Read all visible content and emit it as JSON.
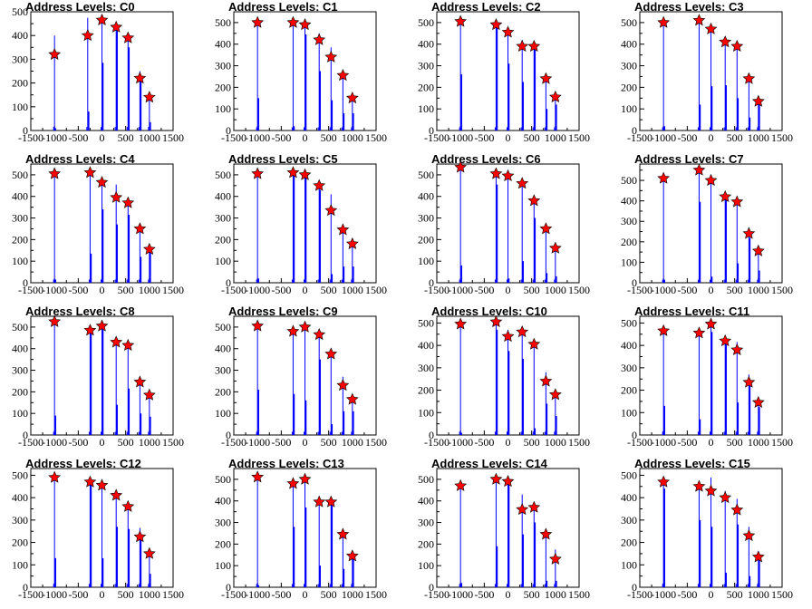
{
  "colors": {
    "line": "#0000ff",
    "marker": "#ff0000",
    "axis": "#000000"
  },
  "panels": [
    {
      "title": "Address Levels: C0",
      "ylim": [
        0,
        500
      ],
      "yticks": [
        "0",
        "100",
        "200",
        "300",
        "400",
        "500"
      ],
      "xlim": [
        -1500,
        1500
      ],
      "xticks": [
        "-1500",
        "-1000",
        "-500",
        "0",
        "500",
        "1000",
        "1500"
      ]
    },
    {
      "title": "Address Levels: C1",
      "ylim": [
        0,
        550
      ],
      "yticks": [
        "0",
        "100",
        "200",
        "300",
        "400",
        "500"
      ],
      "xlim": [
        -1500,
        1500
      ],
      "xticks": [
        "-1500",
        "-1000",
        "-500",
        "0",
        "500",
        "1000",
        "1500"
      ]
    },
    {
      "title": "Address Levels: C2",
      "ylim": [
        0,
        550
      ],
      "yticks": [
        "0",
        "100",
        "200",
        "300",
        "400",
        "500"
      ],
      "xlim": [
        -1500,
        1500
      ],
      "xticks": [
        "-1500",
        "-1000",
        "-500",
        "0",
        "500",
        "1000",
        "1500"
      ]
    },
    {
      "title": "Address Levels: C3",
      "ylim": [
        0,
        550
      ],
      "yticks": [
        "0",
        "100",
        "200",
        "300",
        "400",
        "500"
      ],
      "xlim": [
        -1500,
        1500
      ],
      "xticks": [
        "-1500",
        "-1000",
        "-500",
        "0",
        "500",
        "1000",
        "1500"
      ]
    },
    {
      "title": "Address Levels: C4",
      "ylim": [
        0,
        550
      ],
      "yticks": [
        "0",
        "100",
        "200",
        "300",
        "400",
        "500"
      ],
      "xlim": [
        -1500,
        1500
      ],
      "xticks": [
        "-1500",
        "-1000",
        "-500",
        "0",
        "500",
        "1000",
        "1500"
      ]
    },
    {
      "title": "Address Levels: C5",
      "ylim": [
        0,
        550
      ],
      "yticks": [
        "0",
        "100",
        "200",
        "300",
        "400",
        "500"
      ],
      "xlim": [
        -1500,
        1500
      ],
      "xticks": [
        "-1500",
        "-1000",
        "-500",
        "0",
        "500",
        "1000",
        "1500"
      ]
    },
    {
      "title": "Address Levels: C6",
      "ylim": [
        0,
        550
      ],
      "yticks": [
        "0",
        "100",
        "200",
        "300",
        "400",
        "500"
      ],
      "xlim": [
        -1500,
        1500
      ],
      "xticks": [
        "-1500",
        "-1000",
        "-500",
        "0",
        "500",
        "1000",
        "1500"
      ]
    },
    {
      "title": "Address Levels: C7",
      "ylim": [
        0,
        580
      ],
      "yticks": [
        "0",
        "100",
        "200",
        "300",
        "400",
        "500"
      ],
      "xlim": [
        -1500,
        1500
      ],
      "xticks": [
        "-1500",
        "-1000",
        "-500",
        "0",
        "500",
        "1000",
        "1500"
      ]
    },
    {
      "title": "Address Levels: C8",
      "ylim": [
        0,
        550
      ],
      "yticks": [
        "0",
        "100",
        "200",
        "300",
        "400",
        "500"
      ],
      "xlim": [
        -1500,
        1500
      ],
      "xticks": [
        "-1500",
        "-1000",
        "-500",
        "0",
        "500",
        "1000",
        "1500"
      ]
    },
    {
      "title": "Address Levels: C9",
      "ylim": [
        0,
        550
      ],
      "yticks": [
        "0",
        "100",
        "200",
        "300",
        "400",
        "500"
      ],
      "xlim": [
        -1500,
        1500
      ],
      "xticks": [
        "-1500",
        "-1000",
        "-500",
        "0",
        "500",
        "1000",
        "1500"
      ]
    },
    {
      "title": "Address Levels: C10",
      "ylim": [
        0,
        530
      ],
      "yticks": [
        "0",
        "100",
        "200",
        "300",
        "400",
        "500"
      ],
      "xlim": [
        -1500,
        1500
      ],
      "xticks": [
        "-1500",
        "-1000",
        "-500",
        "0",
        "500",
        "1000",
        "1500"
      ]
    },
    {
      "title": "Address Levels: C11",
      "ylim": [
        0,
        530
      ],
      "yticks": [
        "0",
        "100",
        "200",
        "300",
        "400",
        "500"
      ],
      "xlim": [
        -1500,
        1500
      ],
      "xticks": [
        "-1500",
        "-1000",
        "-500",
        "0",
        "500",
        "1000",
        "1500"
      ]
    },
    {
      "title": "Address Levels: C12",
      "ylim": [
        0,
        530
      ],
      "yticks": [
        "0",
        "100",
        "200",
        "300",
        "400",
        "500"
      ],
      "xlim": [
        -1500,
        1500
      ],
      "xticks": [
        "-1500",
        "-1000",
        "-500",
        "0",
        "500",
        "1000",
        "1500"
      ]
    },
    {
      "title": "Address Levels: C13",
      "ylim": [
        0,
        550
      ],
      "yticks": [
        "0",
        "100",
        "200",
        "300",
        "400",
        "500"
      ],
      "xlim": [
        -1500,
        1500
      ],
      "xticks": [
        "-1500",
        "-1000",
        "-500",
        "0",
        "500",
        "1000",
        "1500"
      ]
    },
    {
      "title": "Address Levels: C14",
      "ylim": [
        0,
        550
      ],
      "yticks": [
        "0",
        "100",
        "200",
        "300",
        "400",
        "500"
      ],
      "xlim": [
        -1500,
        1500
      ],
      "xticks": [
        "-1500",
        "-1000",
        "-500",
        "0",
        "500",
        "1000",
        "1500"
      ]
    },
    {
      "title": "Address Levels: C15",
      "ylim": [
        0,
        530
      ],
      "yticks": [
        "0",
        "100",
        "200",
        "300",
        "400",
        "500"
      ],
      "xlim": [
        -1500,
        1500
      ],
      "xticks": [
        "-1500",
        "-1000",
        "-500",
        "0",
        "500",
        "1000",
        "1500"
      ]
    }
  ],
  "chart_data": [
    {
      "type": "bar",
      "title": "Address Levels: C0",
      "xlim": [
        -1500,
        1500
      ],
      "ylim": [
        0,
        500
      ],
      "x": [
        -1000,
        -300,
        0,
        300,
        550,
        800,
        1000
      ],
      "peaks": [
        400,
        475,
        470,
        450,
        405,
        250,
        150
      ],
      "markers": [
        320,
        400,
        465,
        435,
        390,
        220,
        140
      ],
      "base": [
        10,
        80,
        285,
        430,
        350,
        220,
        35
      ]
    },
    {
      "type": "bar",
      "title": "Address Levels: C1",
      "xlim": [
        -1500,
        1500
      ],
      "ylim": [
        0,
        550
      ],
      "x": [
        -1000,
        -250,
        0,
        300,
        550,
        800,
        1000
      ],
      "peaks": [
        500,
        500,
        495,
        450,
        385,
        280,
        170
      ],
      "markers": [
        500,
        500,
        490,
        420,
        340,
        255,
        150
      ],
      "base": [
        150,
        20,
        445,
        275,
        140,
        80,
        80
      ]
    },
    {
      "type": "bar",
      "title": "Address Levels: C2",
      "xlim": [
        -1500,
        1500
      ],
      "ylim": [
        0,
        550
      ],
      "x": [
        -1000,
        -250,
        0,
        300,
        550,
        800,
        1000
      ],
      "peaks": [
        510,
        500,
        470,
        420,
        410,
        260,
        170
      ],
      "markers": [
        505,
        490,
        455,
        390,
        390,
        240,
        155
      ],
      "base": [
        260,
        480,
        310,
        225,
        380,
        100,
        120
      ]
    },
    {
      "type": "bar",
      "title": "Address Levels: C3",
      "xlim": [
        -1500,
        1500
      ],
      "ylim": [
        0,
        550
      ],
      "x": [
        -1000,
        -250,
        0,
        300,
        550,
        800,
        1000
      ],
      "peaks": [
        505,
        515,
        490,
        430,
        410,
        265,
        160
      ],
      "markers": [
        500,
        510,
        470,
        410,
        390,
        240,
        135
      ],
      "base": [
        20,
        120,
        205,
        210,
        150,
        60,
        130
      ]
    },
    {
      "type": "bar",
      "title": "Address Levels: C4",
      "xlim": [
        -1500,
        1500
      ],
      "ylim": [
        0,
        550
      ],
      "x": [
        -1000,
        -250,
        0,
        300,
        550,
        800,
        1000
      ],
      "peaks": [
        505,
        520,
        480,
        455,
        390,
        265,
        170
      ],
      "markers": [
        505,
        510,
        465,
        395,
        370,
        250,
        155
      ],
      "base": [
        15,
        135,
        340,
        270,
        315,
        120,
        160
      ]
    },
    {
      "type": "bar",
      "title": "Address Levels: C5",
      "xlim": [
        -1500,
        1500
      ],
      "ylim": [
        0,
        550
      ],
      "x": [
        -1000,
        -250,
        0,
        300,
        550,
        800,
        1000
      ],
      "peaks": [
        510,
        520,
        505,
        470,
        410,
        270,
        190
      ],
      "markers": [
        505,
        510,
        500,
        450,
        335,
        245,
        180
      ],
      "base": [
        20,
        505,
        500,
        430,
        40,
        75,
        75
      ]
    },
    {
      "type": "bar",
      "title": "Address Levels: C6",
      "xlim": [
        -1500,
        1500
      ],
      "ylim": [
        0,
        550
      ],
      "x": [
        -1000,
        -250,
        0,
        300,
        550,
        800,
        1000
      ],
      "peaks": [
        540,
        510,
        505,
        470,
        390,
        270,
        170
      ],
      "markers": [
        535,
        505,
        495,
        460,
        380,
        250,
        160
      ],
      "base": [
        80,
        455,
        20,
        100,
        300,
        45,
        30
      ]
    },
    {
      "type": "bar",
      "title": "Address Levels: C7",
      "xlim": [
        -1500,
        1500
      ],
      "ylim": [
        0,
        580
      ],
      "x": [
        -1000,
        -250,
        0,
        300,
        550,
        800,
        1000
      ],
      "peaks": [
        515,
        560,
        505,
        440,
        410,
        270,
        170
      ],
      "markers": [
        510,
        550,
        500,
        420,
        395,
        240,
        155
      ],
      "base": [
        15,
        395,
        30,
        420,
        95,
        220,
        60
      ]
    },
    {
      "type": "bar",
      "title": "Address Levels: C8",
      "xlim": [
        -1500,
        1500
      ],
      "ylim": [
        0,
        550
      ],
      "x": [
        -1000,
        -250,
        0,
        300,
        550,
        800,
        1000
      ],
      "peaks": [
        530,
        490,
        510,
        440,
        425,
        265,
        200
      ],
      "markers": [
        525,
        485,
        505,
        430,
        415,
        245,
        185
      ],
      "base": [
        90,
        470,
        495,
        140,
        215,
        100,
        85
      ]
    },
    {
      "type": "bar",
      "title": "Address Levels: C9",
      "xlim": [
        -1500,
        1500
      ],
      "ylim": [
        0,
        550
      ],
      "x": [
        -1000,
        -250,
        0,
        300,
        550,
        800,
        1000
      ],
      "peaks": [
        515,
        495,
        510,
        480,
        395,
        270,
        180
      ],
      "markers": [
        505,
        480,
        500,
        465,
        375,
        230,
        165
      ],
      "base": [
        210,
        190,
        160,
        350,
        50,
        110,
        110
      ]
    },
    {
      "type": "bar",
      "title": "Address Levels: C10",
      "xlim": [
        -1500,
        1500
      ],
      "ylim": [
        0,
        530
      ],
      "x": [
        -1000,
        -250,
        0,
        300,
        550,
        800,
        1000
      ],
      "peaks": [
        500,
        515,
        470,
        470,
        415,
        280,
        190
      ],
      "markers": [
        495,
        505,
        440,
        460,
        405,
        240,
        180
      ],
      "base": [
        10,
        470,
        375,
        340,
        30,
        140,
        85
      ]
    },
    {
      "type": "bar",
      "title": "Address Levels: C11",
      "xlim": [
        -1500,
        1500
      ],
      "ylim": [
        0,
        530
      ],
      "x": [
        -1000,
        -250,
        0,
        300,
        550,
        800,
        1000
      ],
      "peaks": [
        480,
        470,
        510,
        440,
        415,
        270,
        160
      ],
      "markers": [
        465,
        455,
        495,
        420,
        380,
        235,
        145
      ],
      "base": [
        130,
        70,
        460,
        405,
        145,
        220,
        125
      ]
    },
    {
      "type": "bar",
      "title": "Address Levels: C12",
      "xlim": [
        -1500,
        1500
      ],
      "ylim": [
        0,
        530
      ],
      "x": [
        -1000,
        -250,
        0,
        300,
        550,
        800,
        1000
      ],
      "peaks": [
        500,
        480,
        470,
        425,
        375,
        265,
        170
      ],
      "markers": [
        490,
        470,
        455,
        410,
        360,
        225,
        150
      ],
      "base": [
        130,
        470,
        130,
        270,
        260,
        215,
        60
      ]
    },
    {
      "type": "bar",
      "title": "Address Levels: C13",
      "xlim": [
        -1500,
        1500
      ],
      "ylim": [
        0,
        550
      ],
      "x": [
        -1000,
        -250,
        0,
        300,
        550,
        800,
        1000
      ],
      "peaks": [
        520,
        490,
        510,
        410,
        410,
        270,
        165
      ],
      "markers": [
        510,
        480,
        500,
        395,
        395,
        245,
        145
      ],
      "base": [
        10,
        280,
        370,
        100,
        390,
        85,
        130
      ]
    },
    {
      "type": "bar",
      "title": "Address Levels: C14",
      "xlim": [
        -1500,
        1500
      ],
      "ylim": [
        0,
        550
      ],
      "x": [
        -1000,
        -250,
        0,
        300,
        550,
        800,
        1000
      ],
      "peaks": [
        480,
        505,
        500,
        430,
        385,
        260,
        175
      ],
      "markers": [
        470,
        500,
        490,
        360,
        370,
        245,
        130
      ],
      "base": [
        20,
        190,
        480,
        245,
        300,
        30,
        30
      ]
    },
    {
      "type": "bar",
      "title": "Address Levels: C15",
      "xlim": [
        -1500,
        1500
      ],
      "ylim": [
        0,
        530
      ],
      "x": [
        -1000,
        -250,
        0,
        300,
        550,
        800,
        1000
      ],
      "peaks": [
        480,
        470,
        490,
        430,
        395,
        270,
        160
      ],
      "markers": [
        470,
        450,
        430,
        400,
        345,
        230,
        135
      ],
      "base": [
        440,
        300,
        270,
        65,
        280,
        50,
        145
      ]
    }
  ]
}
